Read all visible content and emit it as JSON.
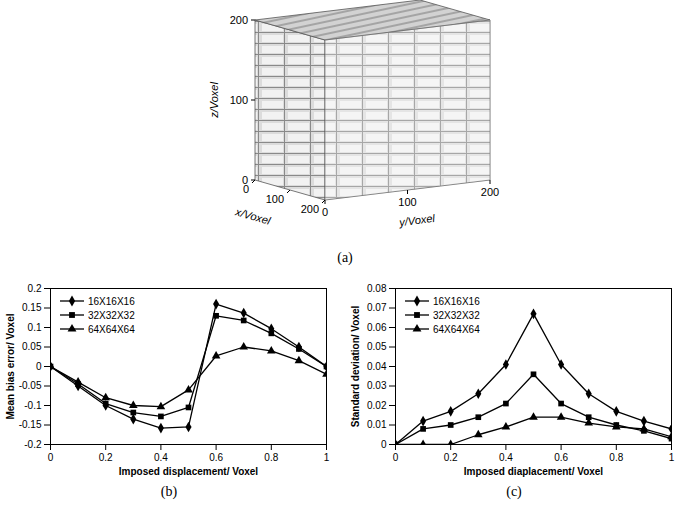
{
  "chart_data": [
    {
      "type": "volume",
      "caption": "(a)",
      "x_label": "x/Voxel",
      "y_label": "y/Voxel",
      "z_label": "z/Voxel",
      "xlim": [
        0,
        200
      ],
      "ylim": [
        0,
        200
      ],
      "zlim": [
        0,
        200
      ],
      "xticks": [
        0,
        100,
        200
      ],
      "yticks": [
        0,
        100,
        200
      ],
      "zticks": [
        0,
        100,
        200
      ]
    },
    {
      "type": "line",
      "caption": "(b)",
      "x_label": "Imposed displacement/ Voxel",
      "y_label": "Mean bias error/ Voxel",
      "x": [
        0,
        0.1,
        0.2,
        0.3,
        0.4,
        0.5,
        0.6,
        0.7,
        0.8,
        0.9,
        1
      ],
      "xlim": [
        0,
        1
      ],
      "xticks": [
        0,
        0.2,
        0.4,
        0.6,
        0.8,
        1
      ],
      "ylim": [
        -0.2,
        0.2
      ],
      "yticks": [
        -0.2,
        -0.15,
        -0.1,
        -0.05,
        0,
        0.05,
        0.1,
        0.15,
        0.2
      ],
      "legend": "top-left",
      "series": [
        {
          "name": "16X16X16",
          "color": "#000000",
          "marker": "diamond",
          "values": [
            0,
            -0.05,
            -0.1,
            -0.135,
            -0.158,
            -0.155,
            0.16,
            0.137,
            0.097,
            0.05,
            0
          ]
        },
        {
          "name": "32X32X32",
          "color": "#000000",
          "marker": "square",
          "values": [
            0,
            -0.045,
            -0.095,
            -0.118,
            -0.128,
            -0.105,
            0.13,
            0.118,
            0.085,
            0.045,
            0
          ]
        },
        {
          "name": "64X64X64",
          "color": "#000000",
          "marker": "triangle",
          "values": [
            0,
            -0.04,
            -0.08,
            -0.1,
            -0.103,
            -0.06,
            0.027,
            0.05,
            0.04,
            0.015,
            -0.02
          ]
        }
      ]
    },
    {
      "type": "line",
      "caption": "(c)",
      "x_label": "Imposed diaplacement/ Voxel",
      "y_label": "Standard deviation/ Voxel",
      "x": [
        0,
        0.1,
        0.2,
        0.3,
        0.4,
        0.5,
        0.6,
        0.7,
        0.8,
        0.9,
        1
      ],
      "xlim": [
        0,
        1
      ],
      "xticks": [
        0,
        0.2,
        0.4,
        0.6,
        0.8,
        1
      ],
      "ylim": [
        0,
        0.08
      ],
      "yticks": [
        0,
        0.01,
        0.02,
        0.03,
        0.04,
        0.05,
        0.06,
        0.07,
        0.08
      ],
      "legend": "top-left",
      "series": [
        {
          "name": "16X16X16",
          "color": "#000000",
          "marker": "diamond",
          "values": [
            0,
            0.012,
            0.017,
            0.026,
            0.041,
            0.067,
            0.041,
            0.026,
            0.017,
            0.012,
            0.008
          ]
        },
        {
          "name": "32X32X32",
          "color": "#000000",
          "marker": "square",
          "values": [
            0,
            0.008,
            0.01,
            0.014,
            0.021,
            0.036,
            0.021,
            0.014,
            0.01,
            0.007,
            0.003
          ]
        },
        {
          "name": "64X64X64",
          "color": "#000000",
          "marker": "triangle",
          "values": [
            0,
            0,
            0,
            0.005,
            0.009,
            0.014,
            0.014,
            0.011,
            0.009,
            0.008,
            0.004
          ]
        }
      ]
    }
  ]
}
